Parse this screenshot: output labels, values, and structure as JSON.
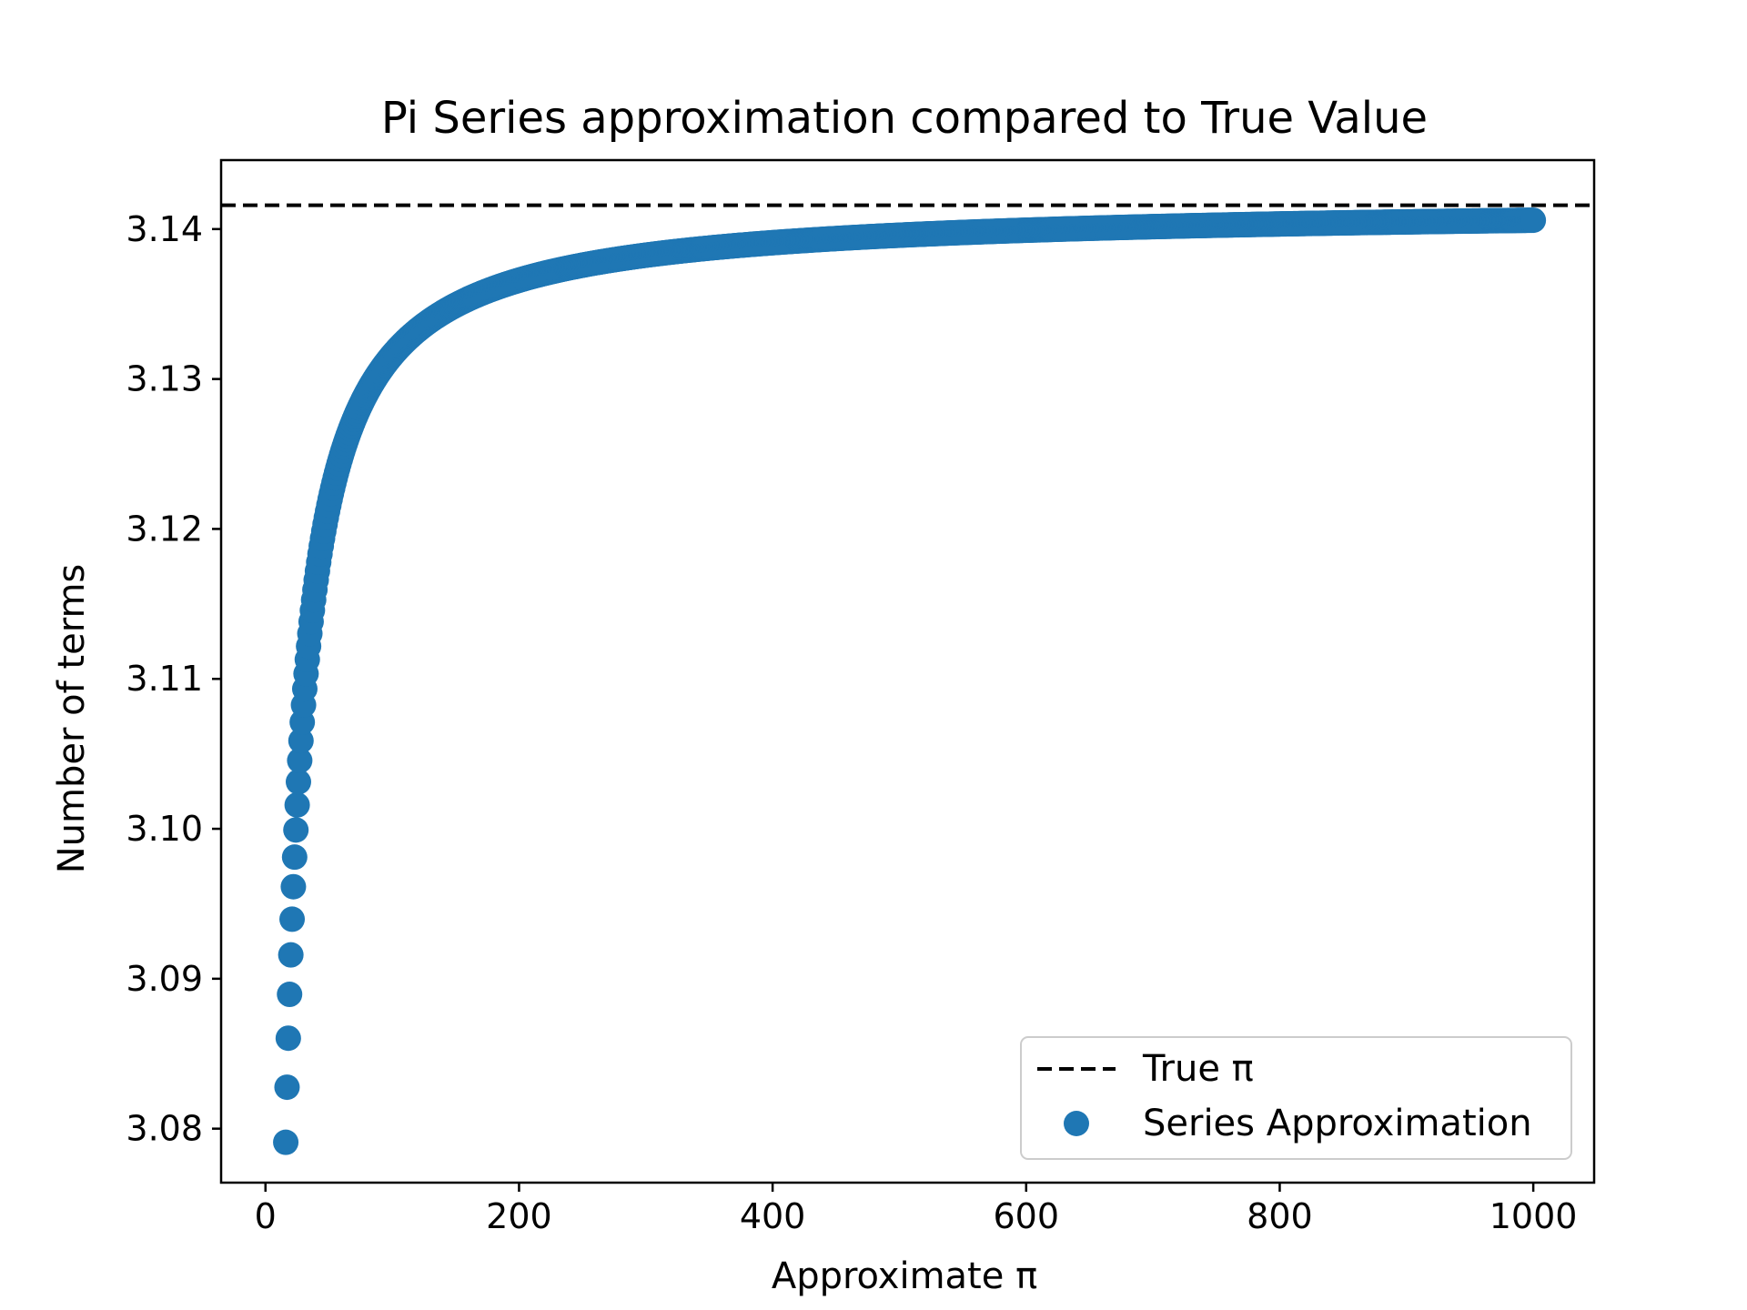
{
  "chart_data": {
    "type": "scatter",
    "title": "Pi Series approximation compared to True Value",
    "xlabel": "Approximate π",
    "ylabel": "Number of terms",
    "xlim": [
      -35,
      1048
    ],
    "ylim": [
      3.0764,
      3.1446
    ],
    "x_ticks": [
      0,
      200,
      400,
      600,
      800,
      1000
    ],
    "y_ticks": [
      3.08,
      3.09,
      3.1,
      3.11,
      3.12,
      3.13,
      3.14
    ],
    "y_tick_labels": [
      "3.08",
      "3.09",
      "3.10",
      "3.11",
      "3.12",
      "3.13",
      "3.14"
    ],
    "grid": false,
    "legend_position": "lower-right",
    "series": [
      {
        "name": "True π",
        "kind": "hline",
        "y": 3.14159,
        "color": "#000000",
        "dash": true
      },
      {
        "name": "Series Approximation",
        "kind": "scatter",
        "color": "#1f77b4",
        "x_start": 16,
        "x_end": 1000,
        "formula": "y = 3.14159 - 1/x"
      }
    ]
  }
}
